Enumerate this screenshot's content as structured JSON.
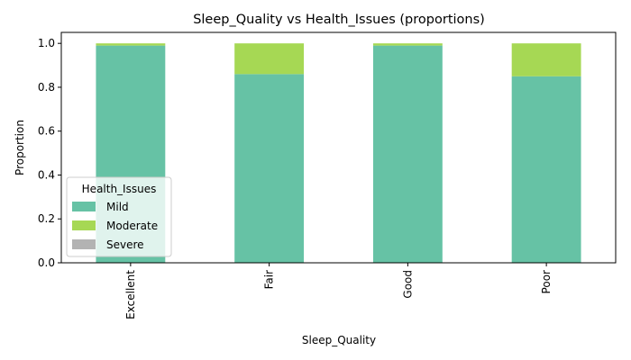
{
  "chart_data": {
    "type": "bar",
    "stacked": true,
    "title": "Sleep_Quality vs Health_Issues (proportions)",
    "xlabel": "Sleep_Quality",
    "ylabel": "Proportion",
    "ylim": [
      0,
      1.05
    ],
    "yticks": [
      "0.0",
      "0.2",
      "0.4",
      "0.6",
      "0.8",
      "1.0"
    ],
    "categories": [
      "Excellent",
      "Fair",
      "Good",
      "Poor"
    ],
    "series": [
      {
        "name": "Mild",
        "color": "#66c2a5",
        "values": [
          0.99,
          0.86,
          0.99,
          0.85
        ]
      },
      {
        "name": "Moderate",
        "color": "#a6d854",
        "values": [
          0.01,
          0.14,
          0.01,
          0.15
        ]
      },
      {
        "name": "Severe",
        "color": "#b3b3b3",
        "values": [
          0.0,
          0.0,
          0.0,
          0.0
        ]
      }
    ],
    "legend": {
      "title": "Health_Issues",
      "placement": "lower-left"
    },
    "grid": false
  }
}
